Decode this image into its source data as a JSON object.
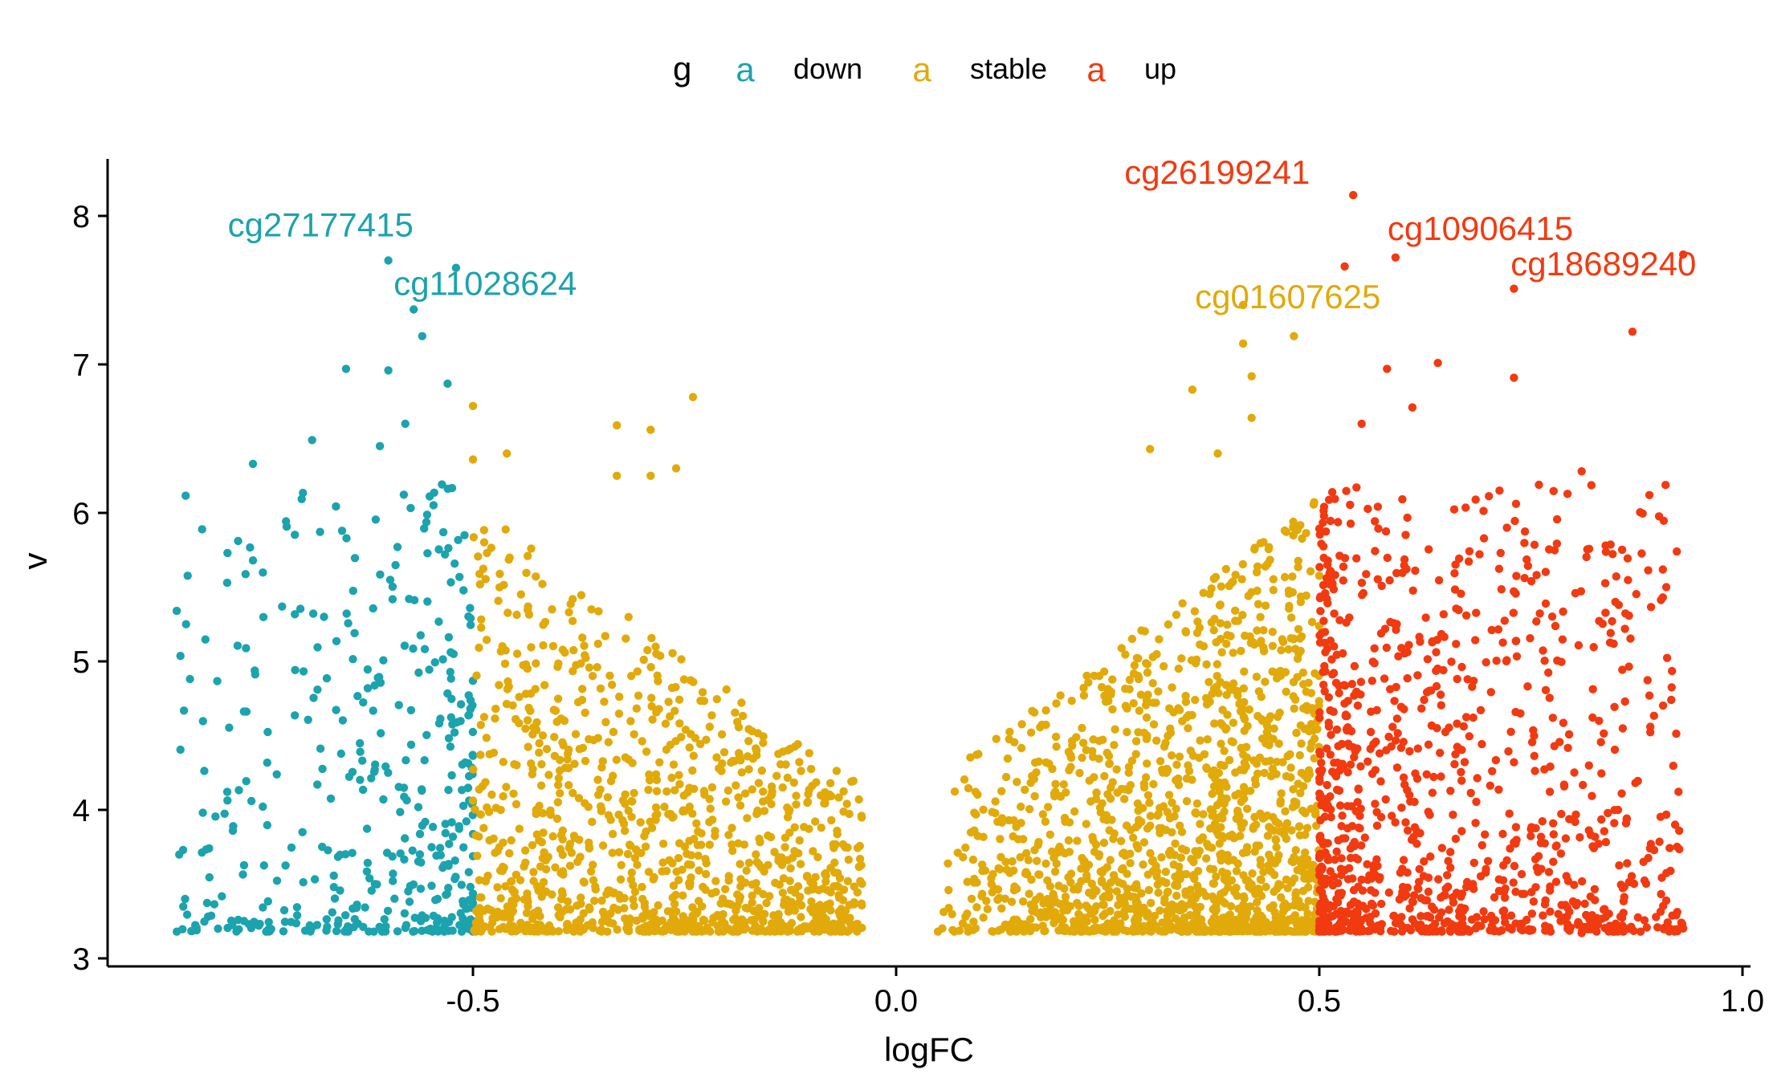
{
  "chart_data": {
    "type": "scatter",
    "title": "",
    "xlabel": "logFC",
    "ylabel": "v",
    "xlim": [
      -0.93,
      1.02
    ],
    "ylim": [
      3.05,
      8.38
    ],
    "x_ticks": [
      -0.5,
      0.0,
      0.5,
      1.0
    ],
    "x_tick_labels": [
      "-0.5",
      "0.0",
      "0.5",
      "1.0"
    ],
    "y_ticks": [
      3,
      4,
      5,
      6,
      7,
      8
    ],
    "y_tick_labels": [
      "3",
      "4",
      "5",
      "6",
      "7",
      "8"
    ],
    "grid": false,
    "legend": {
      "title": "g",
      "placement": "top",
      "key_glyph": "a",
      "entries": [
        {
          "label": "down",
          "color": "#1BA3AE"
        },
        {
          "label": "stable",
          "color": "#E1AA0A"
        },
        {
          "label": "up",
          "color": "#F23A11"
        }
      ]
    },
    "series": [
      {
        "name": "down",
        "color": "#1BA3AE",
        "x_range": [
          -0.85,
          -0.5
        ],
        "approx_point_count": 420,
        "highlighted_points": [
          {
            "x": -0.6,
            "y": 7.7
          },
          {
            "x": -0.52,
            "y": 7.65
          },
          {
            "x": -0.57,
            "y": 7.37
          },
          {
            "x": -0.56,
            "y": 7.19
          },
          {
            "x": -0.58,
            "y": 6.6
          },
          {
            "x": -0.61,
            "y": 6.45
          },
          {
            "x": -0.65,
            "y": 6.97
          },
          {
            "x": -0.6,
            "y": 6.96
          },
          {
            "x": -0.69,
            "y": 6.49
          },
          {
            "x": -0.76,
            "y": 6.33
          },
          {
            "x": -0.82,
            "y": 5.89
          },
          {
            "x": -0.85,
            "y": 5.34
          },
          {
            "x": -0.79,
            "y": 5.73
          },
          {
            "x": -0.76,
            "y": 5.68
          },
          {
            "x": -0.53,
            "y": 6.87
          },
          {
            "x": -0.51,
            "y": 5.85
          }
        ]
      },
      {
        "name": "stable",
        "color": "#E1AA0A",
        "x_range": [
          -0.5,
          0.5
        ],
        "approx_point_count": 2600,
        "highlighted_points": [
          {
            "x": 0.41,
            "y": 7.4
          },
          {
            "x": 0.41,
            "y": 7.14
          },
          {
            "x": 0.47,
            "y": 7.19
          },
          {
            "x": 0.42,
            "y": 6.92
          },
          {
            "x": 0.35,
            "y": 6.83
          },
          {
            "x": -0.24,
            "y": 6.78
          },
          {
            "x": -0.5,
            "y": 6.72
          },
          {
            "x": -0.33,
            "y": 6.59
          },
          {
            "x": -0.29,
            "y": 6.56
          },
          {
            "x": 0.42,
            "y": 6.64
          },
          {
            "x": -0.46,
            "y": 6.4
          },
          {
            "x": -0.5,
            "y": 6.36
          },
          {
            "x": -0.26,
            "y": 6.3
          },
          {
            "x": -0.29,
            "y": 6.25
          },
          {
            "x": -0.33,
            "y": 6.25
          },
          {
            "x": 0.3,
            "y": 6.43
          },
          {
            "x": 0.38,
            "y": 6.4
          }
        ]
      },
      {
        "name": "up",
        "color": "#F23A11",
        "x_range": [
          0.5,
          0.93
        ],
        "approx_point_count": 1050,
        "highlighted_points": [
          {
            "x": 0.54,
            "y": 8.14
          },
          {
            "x": 0.53,
            "y": 7.66
          },
          {
            "x": 0.59,
            "y": 7.72
          },
          {
            "x": 0.93,
            "y": 7.74
          },
          {
            "x": 0.73,
            "y": 7.51
          },
          {
            "x": 0.87,
            "y": 7.22
          },
          {
            "x": 0.64,
            "y": 7.01
          },
          {
            "x": 0.58,
            "y": 6.97
          },
          {
            "x": 0.73,
            "y": 6.91
          },
          {
            "x": 0.61,
            "y": 6.71
          },
          {
            "x": 0.55,
            "y": 6.6
          },
          {
            "x": 0.81,
            "y": 6.28
          },
          {
            "x": 0.89,
            "y": 6.12
          },
          {
            "x": 0.91,
            "y": 5.5
          },
          {
            "x": 0.89,
            "y": 4.77
          },
          {
            "x": 0.81,
            "y": 3.17
          }
        ]
      }
    ],
    "annotations": [
      {
        "text": "cg27177415",
        "series": "down",
        "x": -0.6,
        "y": 7.7
      },
      {
        "text": "cg11028624",
        "series": "down",
        "x": -0.57,
        "y": 7.37
      },
      {
        "text": "cg26199241",
        "series": "up",
        "x": 0.54,
        "y": 8.14
      },
      {
        "text": "cg10906415",
        "series": "up",
        "x": 0.59,
        "y": 7.72
      },
      {
        "text": "cg01607625",
        "series": "stable",
        "x": 0.41,
        "y": 7.4
      },
      {
        "text": "cg18689240",
        "series": "up",
        "x": 0.93,
        "y": 7.74
      }
    ]
  }
}
